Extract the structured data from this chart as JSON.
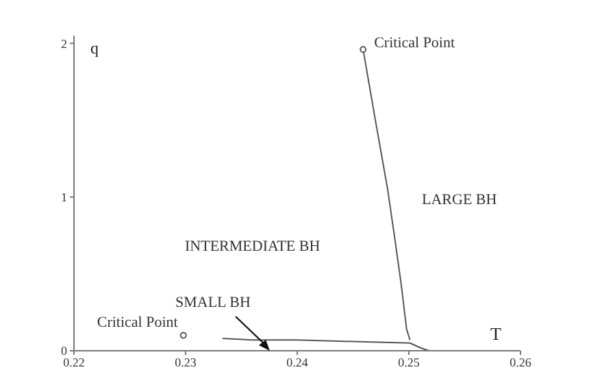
{
  "chart_data": {
    "type": "line",
    "xlabel": "T",
    "ylabel": "q",
    "xlim": [
      0.22,
      0.26
    ],
    "xticks": [
      0.22,
      0.23,
      0.24,
      0.25,
      0.26
    ],
    "ylim": [
      0,
      2.05
    ],
    "yticks": [
      0,
      1,
      2
    ],
    "grid": false,
    "marker": "none",
    "line_style": "solid",
    "series": [
      {
        "color": "#555555",
        "x": [
          0.2459,
          0.247,
          0.2481,
          0.2487,
          0.2493,
          0.2498,
          0.2501
        ],
        "values": [
          1.96,
          1.5,
          1.05,
          0.75,
          0.44,
          0.14,
          0.07
        ]
      },
      {
        "color": "#555555",
        "x": [
          0.2333,
          0.236,
          0.24,
          0.245,
          0.2501,
          0.251,
          0.2518
        ],
        "values": [
          0.08,
          0.07,
          0.07,
          0.06,
          0.05,
          0.02,
          0
        ]
      },
      {
        "type": "scatter",
        "marker": "circle",
        "color": "#555555",
        "x": [
          0.2459,
          0.2298
        ],
        "values": [
          1.96,
          0.1
        ]
      }
    ],
    "annotations": [
      {
        "text": "Critical Point",
        "x": 0.2459,
        "y": 1.96
      },
      {
        "text": "Critical Point",
        "x": 0.2298,
        "y": 0.1
      },
      "LARGE BH",
      "INTERMEDIATE BH",
      "SMALL BH"
    ]
  }
}
